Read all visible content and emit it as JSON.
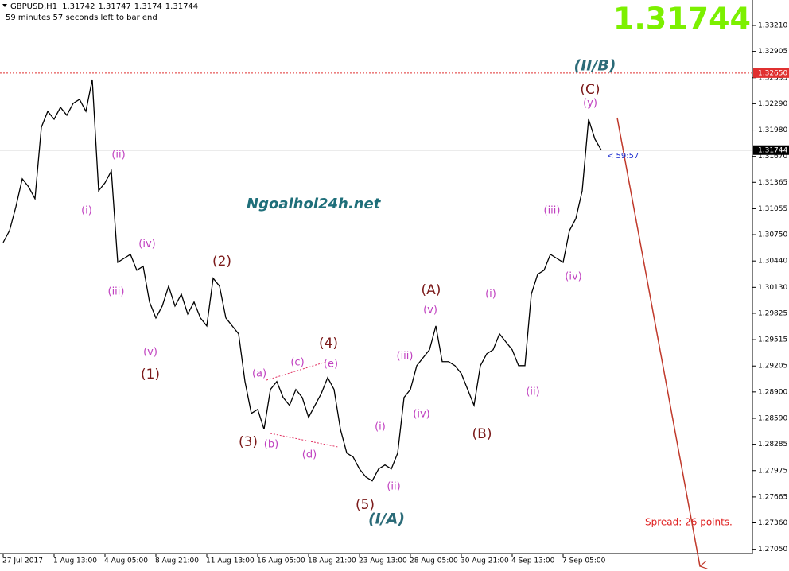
{
  "chart_data": {
    "type": "line",
    "symbol": "GBPUSD,H1",
    "ohlc": [
      1.31742,
      1.31747,
      1.3174,
      1.31744
    ],
    "timer_text": "59 minutes 57 seconds left to bar end",
    "bid": 1.31744,
    "countdown": "< 59:57",
    "watermark": "Ngoaihoi24h.net",
    "spread": "Spread: 26 points.",
    "color": "#000000",
    "levels": [
      {
        "value": 1.3265,
        "label": "1.32650",
        "color": "#e03030"
      }
    ],
    "categories": [
      "27 Jul 2017",
      null,
      null,
      null,
      null,
      null,
      null,
      null,
      "1 Aug 13:00",
      null,
      null,
      null,
      null,
      null,
      null,
      null,
      "4 Aug 05:00",
      null,
      null,
      null,
      null,
      null,
      null,
      null,
      "8 Aug 21:00",
      null,
      null,
      null,
      null,
      null,
      null,
      null,
      "11 Aug 13:00",
      null,
      null,
      null,
      null,
      null,
      null,
      null,
      "16 Aug 05:00",
      null,
      null,
      null,
      null,
      null,
      null,
      null,
      "18 Aug 21:00",
      null,
      null,
      null,
      null,
      null,
      null,
      null,
      "23 Aug 13:00",
      null,
      null,
      null,
      null,
      null,
      null,
      null,
      "28 Aug 05:00",
      null,
      null,
      null,
      null,
      null,
      null,
      null,
      "30 Aug 21:00",
      null,
      null,
      null,
      null,
      null,
      null,
      null,
      "4 Sep 13:00",
      null,
      null,
      null,
      null,
      null,
      null,
      null,
      "7 Sep 05:00",
      null,
      null,
      null,
      null,
      null,
      null
    ],
    "values": [
      1.30658,
      1.30798,
      1.31079,
      1.31406,
      1.31312,
      1.31172,
      1.32013,
      1.322,
      1.32107,
      1.32247,
      1.32154,
      1.32294,
      1.32341,
      1.322,
      1.32574,
      1.31266,
      1.31359,
      1.31499,
      1.30424,
      1.30471,
      1.30518,
      1.30331,
      1.30378,
      1.29957,
      1.2977,
      1.2991,
      1.30144,
      1.2991,
      1.3005,
      1.29817,
      1.29957,
      1.2977,
      1.29676,
      1.30237,
      1.30144,
      1.2977,
      1.29676,
      1.29583,
      1.29022,
      1.28648,
      1.28695,
      1.28461,
      1.28929,
      1.29022,
      1.28835,
      1.28742,
      1.28929,
      1.28835,
      1.28601,
      1.28742,
      1.28882,
      1.29069,
      1.28929,
      1.28461,
      1.28181,
      1.28134,
      1.27994,
      1.279,
      1.27854,
      1.27994,
      1.28041,
      1.27994,
      1.28181,
      1.28835,
      1.28929,
      1.29209,
      1.29303,
      1.29396,
      1.29676,
      1.29256,
      1.29256,
      1.29209,
      1.29116,
      1.28929,
      1.28742,
      1.29209,
      1.29349,
      1.29396,
      1.29583,
      1.29489,
      1.29396,
      1.29209,
      1.29209,
      1.3005,
      1.30284,
      1.30331,
      1.30518,
      1.30471,
      1.30424,
      1.30798,
      1.30938,
      1.31266,
      1.32107,
      1.31873,
      1.31744
    ],
    "ylim": [
      1.27,
      1.335
    ],
    "yticks": [
      {
        "value": 1.3321,
        "label": "1.33210"
      },
      1.32905,
      1.32595,
      {
        "value": 1.3229,
        "label": "1.32290"
      },
      {
        "value": 1.3198,
        "label": "1.31980"
      },
      {
        "value": 1.3167,
        "label": "1.31670"
      },
      1.31365,
      1.31055,
      {
        "value": 1.3075,
        "label": "1.30750"
      },
      {
        "value": 1.3044,
        "label": "1.30440"
      },
      {
        "value": 1.3013,
        "label": "1.30130"
      },
      1.29825,
      1.29515,
      1.29205,
      {
        "value": 1.289,
        "label": "1.28900"
      },
      {
        "value": 1.2859,
        "label": "1.28590"
      },
      1.28285,
      1.27975,
      1.27665,
      {
        "value": 1.2736,
        "label": "1.27360"
      },
      {
        "value": 1.2705,
        "label": "1.27050"
      }
    ],
    "annotations": [
      "(II/B)",
      "(C)",
      "(y)",
      "(ii)",
      "(i)",
      "(iv)",
      "(iii)",
      "(v)",
      "(1)",
      "(2)",
      "(a)",
      "(c)",
      "(e)",
      "(4)",
      "(3)",
      "(b)",
      "(d)",
      "(5)",
      "(I/A)",
      "(i)",
      "(ii)",
      "(iii)",
      "(iv)",
      "(v)",
      "(A)",
      "(B)",
      "(i)",
      "(ii)",
      "(iii)",
      "(iv)"
    ]
  }
}
